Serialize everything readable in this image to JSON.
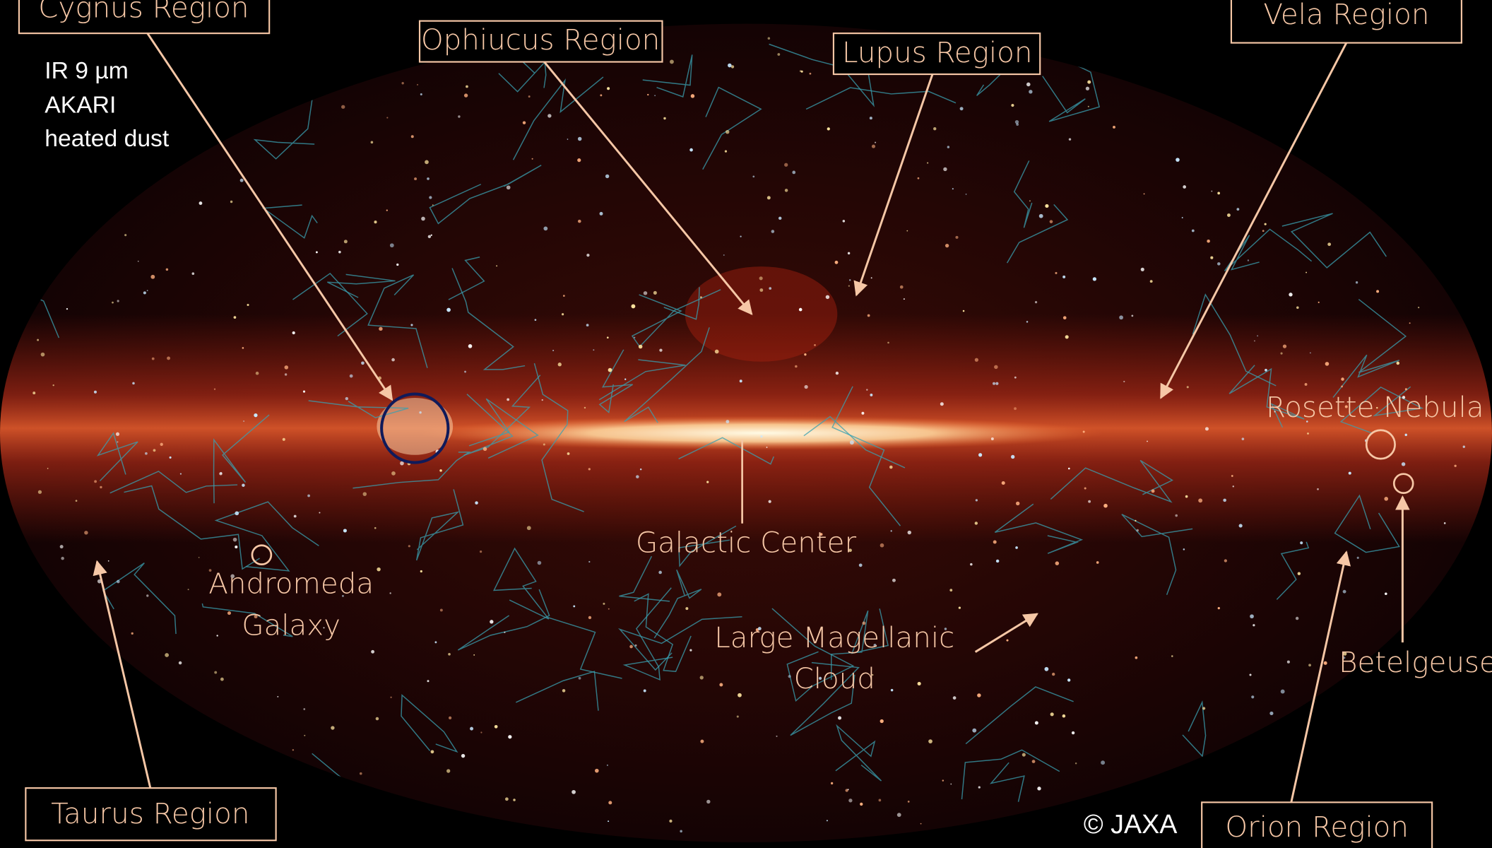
{
  "caption": [
    "IR 9 µm",
    "AKARI",
    "heated dust"
  ],
  "labels": {
    "cygnus": "Cygnus Region",
    "ophiuchus": "Ophiucus Region",
    "lupus": "Lupus Region",
    "vela": "Vela Region",
    "rosette": "Rosette Nebula",
    "betelgeuse": "Betelgeuse",
    "andromeda": [
      "Andromeda",
      "Galaxy"
    ],
    "galactic_center": "Galactic Center",
    "lmc": [
      "Large Magellanic",
      "Cloud"
    ],
    "taurus": "Taurus Region",
    "orion": "Orion Region"
  },
  "credit": "© JAXA"
}
